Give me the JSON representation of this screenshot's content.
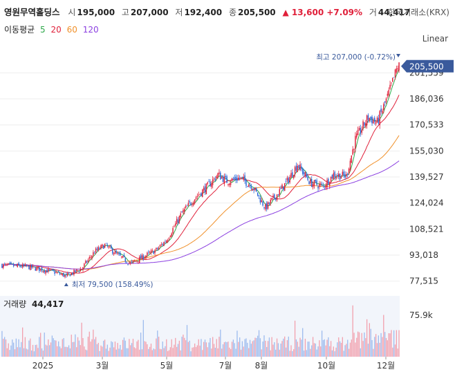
{
  "header": {
    "name": "영원무역홀딩스",
    "open_label": "시",
    "open": "195,000",
    "high_label": "고",
    "high": "207,000",
    "low_label": "저",
    "low": "192,400",
    "close_label": "종",
    "close": "205,500",
    "change": "▲ 13,600 +7.09%",
    "volume_label": "거",
    "volume": "44,417",
    "exchange": "한국거래소(KRX)"
  },
  "ma_legend": {
    "title": "이동평균",
    "periods": [
      {
        "label": "5",
        "color": "#2ea84a"
      },
      {
        "label": "20",
        "color": "#e0203a"
      },
      {
        "label": "60",
        "color": "#f0902a"
      },
      {
        "label": "120",
        "color": "#8a3ee0"
      }
    ]
  },
  "scale_button": "Linear",
  "price_pane": {
    "high_annotation": "최고 207,000 (-0.72%)",
    "low_annotation": "최저 79,500 (158.49%)",
    "last_price_label": "205,500"
  },
  "volume_pane": {
    "label": "거래량",
    "value": "44,417",
    "tick": "75.9k"
  },
  "colors": {
    "up": "#e0203a",
    "down": "#2a68d8",
    "accent": "#3a5a9c"
  },
  "chart_data": {
    "type": "candlestick",
    "y_ticks": [
      201559,
      186036,
      170533,
      155030,
      139527,
      124024,
      108521,
      93018,
      77515
    ],
    "x_tick_labels": [
      "2025",
      "3월",
      "5월",
      "7월",
      "8월",
      "10월",
      "12월"
    ],
    "ylim": [
      72000,
      212000
    ],
    "high": 207000,
    "low": 79500,
    "last": 205500,
    "keypoints": [
      {
        "t": 0,
        "p": 87000
      },
      {
        "t": 20,
        "p": 86000
      },
      {
        "t": 40,
        "p": 83000
      },
      {
        "t": 50,
        "p": 80500
      },
      {
        "t": 62,
        "p": 85000
      },
      {
        "t": 72,
        "p": 95000
      },
      {
        "t": 80,
        "p": 99000
      },
      {
        "t": 92,
        "p": 92000
      },
      {
        "t": 100,
        "p": 88000
      },
      {
        "t": 110,
        "p": 92000
      },
      {
        "t": 120,
        "p": 96000
      },
      {
        "t": 128,
        "p": 102000
      },
      {
        "t": 140,
        "p": 118000
      },
      {
        "t": 150,
        "p": 127000
      },
      {
        "t": 160,
        "p": 134000
      },
      {
        "t": 168,
        "p": 141000
      },
      {
        "t": 175,
        "p": 137000
      },
      {
        "t": 185,
        "p": 139000
      },
      {
        "t": 195,
        "p": 134000
      },
      {
        "t": 205,
        "p": 121000
      },
      {
        "t": 215,
        "p": 130000
      },
      {
        "t": 222,
        "p": 137000
      },
      {
        "t": 230,
        "p": 147000
      },
      {
        "t": 240,
        "p": 136000
      },
      {
        "t": 250,
        "p": 134000
      },
      {
        "t": 258,
        "p": 141000
      },
      {
        "t": 268,
        "p": 140000
      },
      {
        "t": 275,
        "p": 162000
      },
      {
        "t": 285,
        "p": 175000
      },
      {
        "t": 292,
        "p": 172000
      },
      {
        "t": 300,
        "p": 187000
      },
      {
        "t": 308,
        "p": 205500
      }
    ],
    "ma_series": [
      {
        "period": 5,
        "color": "#2ea84a"
      },
      {
        "period": 20,
        "color": "#e0203a"
      },
      {
        "period": 60,
        "color": "#f0902a"
      },
      {
        "period": 120,
        "color": "#8a3ee0"
      }
    ]
  }
}
